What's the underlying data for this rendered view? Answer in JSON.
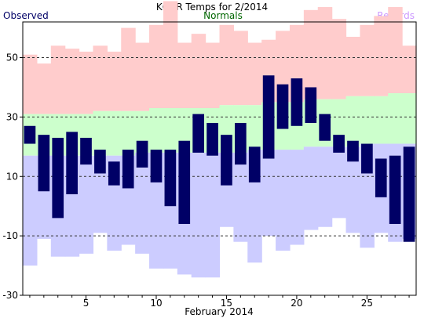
{
  "chart_data": {
    "type": "bar",
    "title": "KGRR Temps for 2/2014",
    "xlabel": "February 2014",
    "ylabel": "",
    "xlim": [
      0.5,
      28.5
    ],
    "ylim": [
      -30,
      62
    ],
    "x_ticks": [
      5,
      10,
      15,
      20,
      25
    ],
    "y_ticks": [
      -30,
      -10,
      10,
      30,
      50
    ],
    "dashed_gridlines": [
      -10,
      10,
      30,
      50
    ],
    "legend": [
      {
        "label": "Observed",
        "color": "#000066",
        "position": "top-left"
      },
      {
        "label": "Normals",
        "color": "#006600",
        "position": "top-center"
      },
      {
        "label": "Records",
        "color": "#cc99ff",
        "position": "top-right"
      }
    ],
    "colors": {
      "record_high_band": "#ffcccc",
      "normal_band": "#ccffcc",
      "record_low_band": "#ccccff",
      "observed_bar": "#000066"
    },
    "days": [
      1,
      2,
      3,
      4,
      5,
      6,
      7,
      8,
      9,
      10,
      11,
      12,
      13,
      14,
      15,
      16,
      17,
      18,
      19,
      20,
      21,
      22,
      23,
      24,
      25,
      26,
      27,
      28
    ],
    "series": [
      {
        "name": "Record High",
        "values": [
          51,
          48,
          54,
          53,
          52,
          54,
          52,
          60,
          55,
          61,
          69,
          55,
          58,
          55,
          61,
          59,
          55,
          56,
          59,
          61,
          66,
          67,
          63,
          57,
          61,
          64,
          67,
          54
        ]
      },
      {
        "name": "Normal High",
        "values": [
          31,
          31,
          31,
          31,
          31,
          32,
          32,
          32,
          32,
          33,
          33,
          33,
          33,
          33,
          34,
          34,
          34,
          35,
          35,
          35,
          36,
          36,
          36,
          37,
          37,
          37,
          38,
          38
        ]
      },
      {
        "name": "Normal Low",
        "values": [
          17,
          17,
          17,
          17,
          17,
          17,
          17,
          17,
          18,
          18,
          18,
          18,
          18,
          18,
          18,
          18,
          19,
          19,
          19,
          19,
          20,
          20,
          20,
          20,
          21,
          21,
          21,
          21
        ]
      },
      {
        "name": "Record Low",
        "values": [
          -20,
          -11,
          -17,
          -17,
          -16,
          -9,
          -15,
          -13,
          -16,
          -21,
          -21,
          -23,
          -24,
          -24,
          -7,
          -12,
          -19,
          -10,
          -15,
          -13,
          -8,
          -7,
          -4,
          -9,
          -14,
          -9,
          -12,
          -11
        ]
      },
      {
        "name": "Observed High",
        "values": [
          27,
          24,
          23,
          25,
          23,
          19,
          15,
          19,
          22,
          19,
          19,
          22,
          31,
          28,
          24,
          28,
          20,
          44,
          41,
          43,
          40,
          31,
          24,
          22,
          21,
          16,
          17,
          20
        ]
      },
      {
        "name": "Observed Low",
        "values": [
          21,
          5,
          -4,
          4,
          14,
          11,
          7,
          6,
          13,
          8,
          0,
          -6,
          18,
          17,
          7,
          14,
          8,
          16,
          26,
          27,
          28,
          22,
          18,
          15,
          11,
          3,
          -6,
          -12
        ]
      }
    ]
  }
}
